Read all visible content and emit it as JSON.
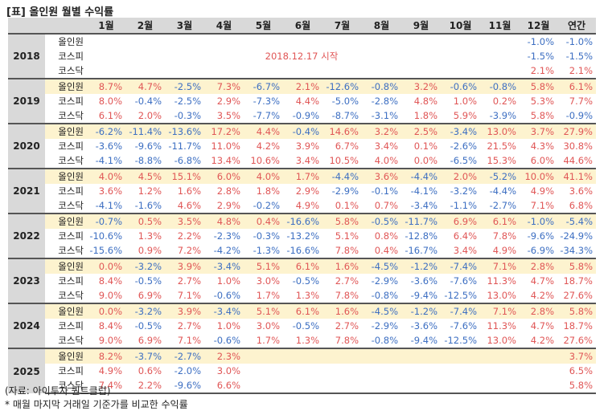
{
  "title": "[표] 올인원 월별 수익률",
  "header": {
    "months": [
      "1월",
      "2월",
      "3월",
      "4월",
      "5월",
      "6월",
      "7월",
      "8월",
      "9월",
      "10월",
      "11월",
      "12월"
    ],
    "annual": "연간"
  },
  "index_names": [
    "올인원",
    "코스피",
    "코스닥"
  ],
  "colors": {
    "positive": "#e05656",
    "negative": "#3d6fc2",
    "highlight_row": "#fdf3cf",
    "header_bg": "#d9d9d9"
  },
  "note_2018": "2018.12.17 시작",
  "years": [
    {
      "year": "2018",
      "rows": [
        {
          "name": "올인원",
          "values": [
            "",
            "",
            "",
            "",
            "",
            "",
            "",
            "",
            "",
            "",
            "",
            "-1.0%"
          ],
          "annual": "-1.0%"
        },
        {
          "name": "코스피",
          "values": [
            "",
            "",
            "",
            "",
            "",
            "",
            "",
            "",
            "",
            "",
            "",
            "-1.5%"
          ],
          "annual": "-1.5%"
        },
        {
          "name": "코스닥",
          "values": [
            "",
            "",
            "",
            "",
            "",
            "",
            "",
            "",
            "",
            "",
            "",
            "2.1%"
          ],
          "annual": "2.1%"
        }
      ]
    },
    {
      "year": "2019",
      "rows": [
        {
          "name": "올인원",
          "values": [
            "8.7%",
            "4.7%",
            "-2.5%",
            "7.3%",
            "-6.7%",
            "2.1%",
            "-12.6%",
            "-0.8%",
            "3.2%",
            "-0.6%",
            "-0.8%",
            "5.8%"
          ],
          "annual": "6.1%"
        },
        {
          "name": "코스피",
          "values": [
            "8.0%",
            "-0.4%",
            "-2.5%",
            "2.9%",
            "-7.3%",
            "4.4%",
            "-5.0%",
            "-2.8%",
            "4.8%",
            "1.0%",
            "0.2%",
            "5.3%"
          ],
          "annual": "7.7%"
        },
        {
          "name": "코스닥",
          "values": [
            "6.1%",
            "2.0%",
            "-0.3%",
            "3.5%",
            "-7.7%",
            "-0.9%",
            "-8.7%",
            "-3.1%",
            "1.8%",
            "5.9%",
            "-3.9%",
            "5.8%"
          ],
          "annual": "-0.9%"
        }
      ]
    },
    {
      "year": "2020",
      "rows": [
        {
          "name": "올인원",
          "values": [
            "-6.2%",
            "-11.4%",
            "-13.6%",
            "17.2%",
            "4.4%",
            "-0.4%",
            "14.6%",
            "3.2%",
            "2.5%",
            "-3.4%",
            "13.0%",
            "3.7%"
          ],
          "annual": "27.9%"
        },
        {
          "name": "코스피",
          "values": [
            "-3.6%",
            "-9.6%",
            "-11.7%",
            "11.0%",
            "4.2%",
            "3.9%",
            "6.7%",
            "3.4%",
            "0.1%",
            "-2.6%",
            "21.5%",
            "4.3%"
          ],
          "annual": "30.8%"
        },
        {
          "name": "코스닥",
          "values": [
            "-4.1%",
            "-8.8%",
            "-6.8%",
            "13.4%",
            "10.6%",
            "3.4%",
            "10.5%",
            "4.0%",
            "0.0%",
            "-6.5%",
            "15.3%",
            "6.0%"
          ],
          "annual": "44.6%"
        }
      ]
    },
    {
      "year": "2021",
      "rows": [
        {
          "name": "올인원",
          "values": [
            "4.0%",
            "4.5%",
            "15.1%",
            "6.0%",
            "4.0%",
            "1.7%",
            "-4.4%",
            "3.6%",
            "-4.4%",
            "2.0%",
            "-5.2%",
            "10.0%"
          ],
          "annual": "41.1%"
        },
        {
          "name": "코스피",
          "values": [
            "3.6%",
            "1.2%",
            "1.6%",
            "2.8%",
            "1.8%",
            "2.9%",
            "-2.9%",
            "-0.1%",
            "-4.1%",
            "-3.2%",
            "-4.4%",
            "4.9%"
          ],
          "annual": "3.6%"
        },
        {
          "name": "코스닥",
          "values": [
            "-4.1%",
            "-1.6%",
            "4.6%",
            "2.9%",
            "-0.2%",
            "4.9%",
            "0.1%",
            "0.7%",
            "-3.4%",
            "-1.1%",
            "-2.7%",
            "7.1%"
          ],
          "annual": "6.8%"
        }
      ]
    },
    {
      "year": "2022",
      "rows": [
        {
          "name": "올인원",
          "values": [
            "-0.7%",
            "0.5%",
            "3.5%",
            "4.8%",
            "0.4%",
            "-16.6%",
            "5.8%",
            "-0.5%",
            "-11.7%",
            "6.9%",
            "6.1%",
            "-1.0%"
          ],
          "annual": "-5.4%"
        },
        {
          "name": "코스피",
          "values": [
            "-10.6%",
            "1.3%",
            "2.2%",
            "-2.3%",
            "-0.3%",
            "-13.2%",
            "5.1%",
            "0.8%",
            "-12.8%",
            "6.4%",
            "7.8%",
            "-9.6%"
          ],
          "annual": "-24.9%"
        },
        {
          "name": "코스닥",
          "values": [
            "-15.6%",
            "0.9%",
            "7.2%",
            "-4.2%",
            "-1.3%",
            "-16.6%",
            "7.8%",
            "0.4%",
            "-16.7%",
            "3.4%",
            "4.9%",
            "-6.9%"
          ],
          "annual": "-34.3%"
        }
      ]
    },
    {
      "year": "2023",
      "rows": [
        {
          "name": "올인원",
          "values": [
            "0.0%",
            "-3.2%",
            "3.9%",
            "-3.4%",
            "5.1%",
            "6.1%",
            "1.6%",
            "-4.5%",
            "-1.2%",
            "-7.4%",
            "7.1%",
            "2.8%"
          ],
          "annual": "5.8%"
        },
        {
          "name": "코스피",
          "values": [
            "8.4%",
            "-0.5%",
            "2.7%",
            "1.0%",
            "3.0%",
            "-0.5%",
            "2.7%",
            "-2.9%",
            "-3.6%",
            "-7.6%",
            "11.3%",
            "4.7%"
          ],
          "annual": "18.7%"
        },
        {
          "name": "코스닥",
          "values": [
            "9.0%",
            "6.9%",
            "7.1%",
            "-0.6%",
            "1.7%",
            "1.3%",
            "7.8%",
            "-0.8%",
            "-9.4%",
            "-12.5%",
            "13.0%",
            "4.2%"
          ],
          "annual": "27.6%"
        }
      ]
    },
    {
      "year": "2024",
      "rows": [
        {
          "name": "올인원",
          "values": [
            "0.0%",
            "-3.2%",
            "3.9%",
            "-3.4%",
            "5.1%",
            "6.1%",
            "1.6%",
            "-4.5%",
            "-1.2%",
            "-7.4%",
            "7.1%",
            "2.8%"
          ],
          "annual": "5.8%"
        },
        {
          "name": "코스피",
          "values": [
            "8.4%",
            "-0.5%",
            "2.7%",
            "1.0%",
            "3.0%",
            "-0.5%",
            "2.7%",
            "-2.9%",
            "-3.6%",
            "-7.6%",
            "11.3%",
            "4.7%"
          ],
          "annual": "18.7%"
        },
        {
          "name": "코스닥",
          "values": [
            "9.0%",
            "6.9%",
            "7.1%",
            "-0.6%",
            "1.7%",
            "1.3%",
            "7.8%",
            "-0.8%",
            "-9.4%",
            "-12.5%",
            "13.0%",
            "4.2%"
          ],
          "annual": "27.6%"
        }
      ]
    },
    {
      "year": "2025",
      "rows": [
        {
          "name": "올인원",
          "values": [
            "8.2%",
            "-3.7%",
            "-2.7%",
            "2.3%",
            "",
            "",
            "",
            "",
            "",
            "",
            "",
            ""
          ],
          "annual": "3.7%"
        },
        {
          "name": "코스피",
          "values": [
            "4.9%",
            "0.6%",
            "-2.0%",
            "3.0%",
            "",
            "",
            "",
            "",
            "",
            "",
            "",
            ""
          ],
          "annual": "6.5%"
        },
        {
          "name": "코스닥",
          "values": [
            "7.4%",
            "2.2%",
            "-9.6%",
            "6.6%",
            "",
            "",
            "",
            "",
            "",
            "",
            "",
            ""
          ],
          "annual": "5.8%"
        }
      ]
    }
  ],
  "source": "(자료: 아이투자 퀀트클럽)",
  "footnote": "* 매월 마지막 거래일 기준가를 비교한 수익률"
}
